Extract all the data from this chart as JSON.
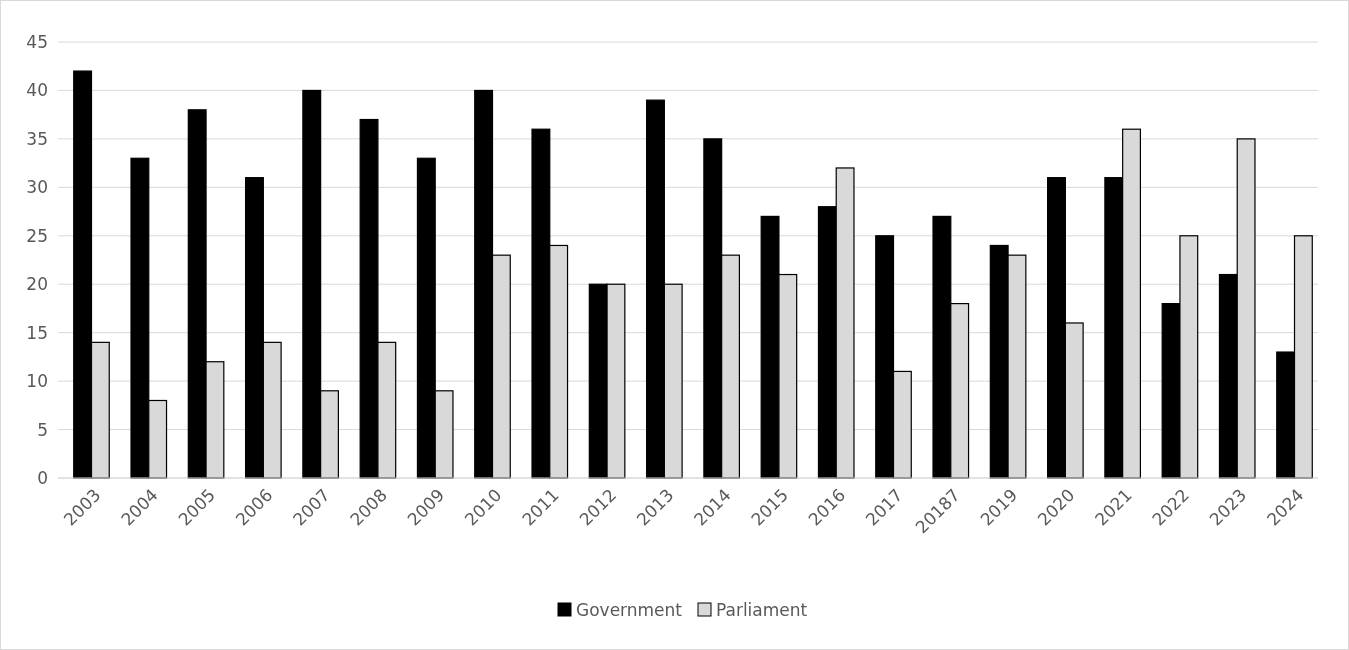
{
  "chart_data": {
    "type": "bar",
    "categories": [
      "2003",
      "2004",
      "2005",
      "2006",
      "2007",
      "2008",
      "2009",
      "2010",
      "2011",
      "2012",
      "2013",
      "2014",
      "2015",
      "2016",
      "2017",
      "20187",
      "2019",
      "2020",
      "2021",
      "2022",
      "2023",
      "2024"
    ],
    "series": [
      {
        "name": "Government",
        "color": "#000000",
        "values": [
          42,
          33,
          38,
          31,
          40,
          37,
          33,
          40,
          36,
          20,
          39,
          35,
          27,
          28,
          25,
          27,
          24,
          31,
          31,
          18,
          21,
          13
        ]
      },
      {
        "name": "Parliament",
        "color": "#d9d9d9",
        "values": [
          14,
          8,
          12,
          14,
          9,
          14,
          9,
          23,
          24,
          20,
          20,
          23,
          21,
          32,
          11,
          18,
          23,
          16,
          36,
          25,
          35,
          25
        ]
      }
    ],
    "ylim": [
      0,
      45
    ],
    "yticks": [
      0,
      5,
      10,
      15,
      20,
      25,
      30,
      35,
      40,
      45
    ],
    "grid": "y",
    "legend": "bottom"
  }
}
